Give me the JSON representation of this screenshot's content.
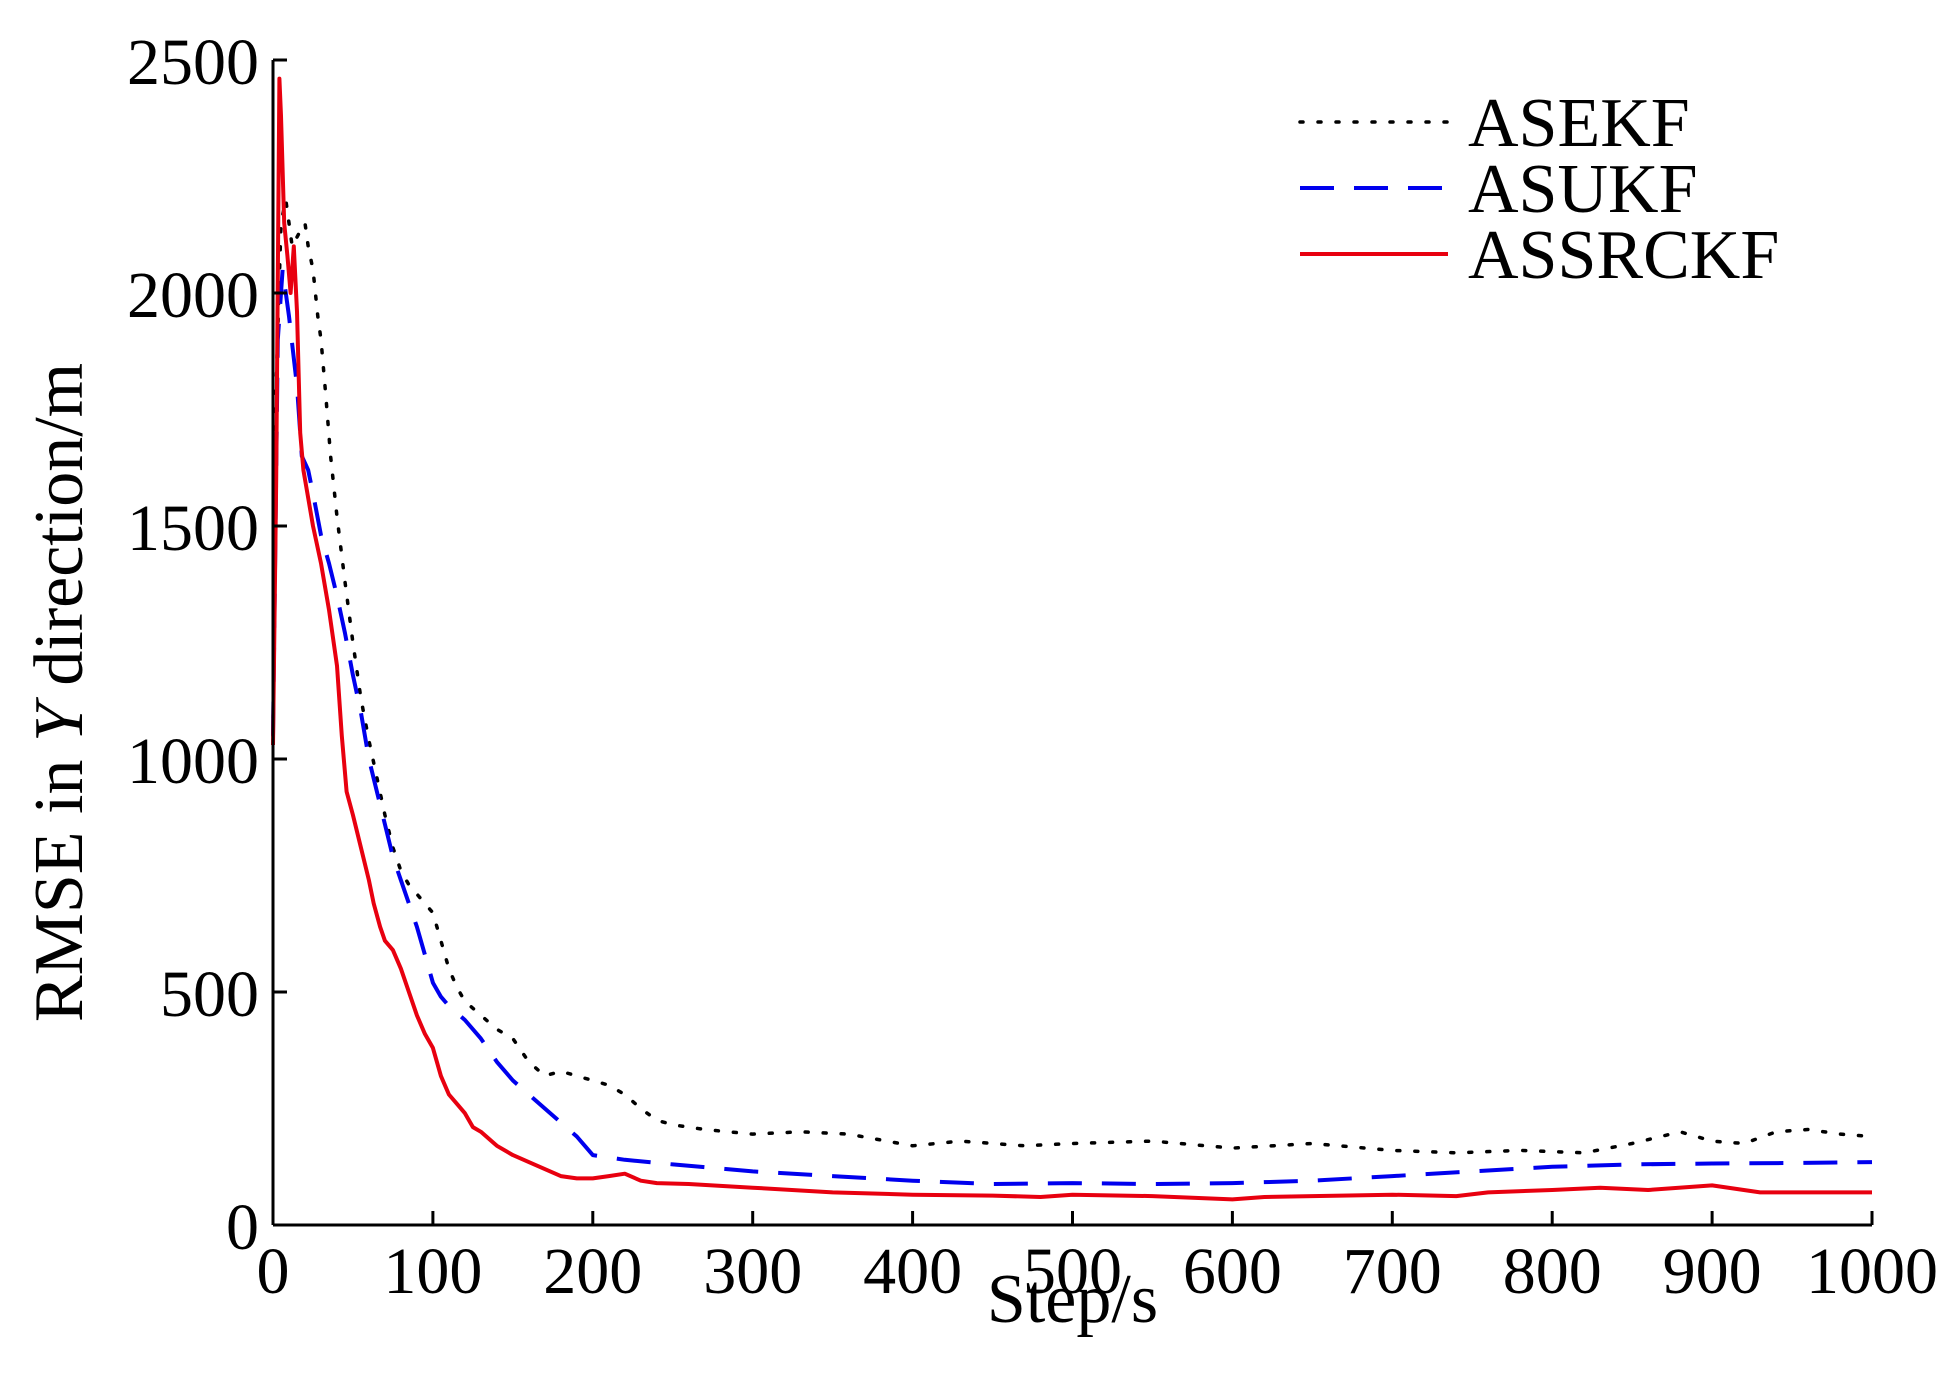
{
  "chart_data": {
    "type": "line",
    "title": "",
    "xlabel": "Step/s",
    "ylabel_parts": [
      "RMSE in ",
      "Y",
      " direction/m"
    ],
    "xlim": [
      0,
      1000
    ],
    "ylim": [
      0,
      2500
    ],
    "xticks": [
      0,
      100,
      200,
      300,
      400,
      500,
      600,
      700,
      800,
      900,
      1000
    ],
    "yticks": [
      0,
      500,
      1000,
      1500,
      2000,
      2500
    ],
    "grid": false,
    "legend_position": "top-right",
    "series": [
      {
        "name": "ASEKF",
        "color": "#000000",
        "style": "dotted",
        "points": [
          [
            0,
            1050
          ],
          [
            2,
            1800
          ],
          [
            5,
            2150
          ],
          [
            8,
            2200
          ],
          [
            12,
            2100
          ],
          [
            15,
            2120
          ],
          [
            18,
            2140
          ],
          [
            20,
            2150
          ],
          [
            22,
            2100
          ],
          [
            25,
            2050
          ],
          [
            28,
            1950
          ],
          [
            30,
            1900
          ],
          [
            33,
            1780
          ],
          [
            36,
            1650
          ],
          [
            40,
            1520
          ],
          [
            45,
            1380
          ],
          [
            50,
            1250
          ],
          [
            55,
            1130
          ],
          [
            60,
            1040
          ],
          [
            65,
            960
          ],
          [
            70,
            880
          ],
          [
            75,
            810
          ],
          [
            80,
            760
          ],
          [
            85,
            730
          ],
          [
            90,
            710
          ],
          [
            95,
            690
          ],
          [
            100,
            670
          ],
          [
            105,
            610
          ],
          [
            110,
            550
          ],
          [
            115,
            510
          ],
          [
            120,
            480
          ],
          [
            130,
            450
          ],
          [
            140,
            420
          ],
          [
            150,
            400
          ],
          [
            160,
            350
          ],
          [
            170,
            320
          ],
          [
            180,
            330
          ],
          [
            190,
            320
          ],
          [
            200,
            310
          ],
          [
            210,
            300
          ],
          [
            220,
            280
          ],
          [
            230,
            250
          ],
          [
            240,
            225
          ],
          [
            250,
            215
          ],
          [
            270,
            205
          ],
          [
            300,
            195
          ],
          [
            330,
            200
          ],
          [
            360,
            195
          ],
          [
            400,
            170
          ],
          [
            430,
            180
          ],
          [
            470,
            170
          ],
          [
            500,
            175
          ],
          [
            550,
            180
          ],
          [
            600,
            165
          ],
          [
            650,
            175
          ],
          [
            700,
            160
          ],
          [
            740,
            155
          ],
          [
            780,
            160
          ],
          [
            820,
            155
          ],
          [
            850,
            175
          ],
          [
            880,
            200
          ],
          [
            900,
            180
          ],
          [
            920,
            175
          ],
          [
            940,
            200
          ],
          [
            960,
            205
          ],
          [
            980,
            195
          ],
          [
            1000,
            190
          ]
        ]
      },
      {
        "name": "ASUKF",
        "color": "#0000ee",
        "style": "dashed",
        "points": [
          [
            0,
            1050
          ],
          [
            3,
            1900
          ],
          [
            6,
            2050
          ],
          [
            10,
            1950
          ],
          [
            15,
            1800
          ],
          [
            18,
            1650
          ],
          [
            22,
            1620
          ],
          [
            25,
            1570
          ],
          [
            30,
            1480
          ],
          [
            35,
            1420
          ],
          [
            40,
            1350
          ],
          [
            45,
            1270
          ],
          [
            50,
            1180
          ],
          [
            55,
            1100
          ],
          [
            60,
            1000
          ],
          [
            65,
            930
          ],
          [
            70,
            860
          ],
          [
            75,
            790
          ],
          [
            80,
            740
          ],
          [
            85,
            690
          ],
          [
            90,
            640
          ],
          [
            95,
            580
          ],
          [
            100,
            520
          ],
          [
            105,
            490
          ],
          [
            110,
            470
          ],
          [
            120,
            440
          ],
          [
            130,
            400
          ],
          [
            140,
            350
          ],
          [
            150,
            310
          ],
          [
            160,
            280
          ],
          [
            170,
            250
          ],
          [
            180,
            220
          ],
          [
            190,
            190
          ],
          [
            200,
            150
          ],
          [
            220,
            140
          ],
          [
            250,
            130
          ],
          [
            300,
            115
          ],
          [
            350,
            105
          ],
          [
            400,
            95
          ],
          [
            450,
            88
          ],
          [
            500,
            90
          ],
          [
            550,
            88
          ],
          [
            600,
            90
          ],
          [
            650,
            95
          ],
          [
            700,
            105
          ],
          [
            750,
            115
          ],
          [
            800,
            125
          ],
          [
            850,
            130
          ],
          [
            900,
            132
          ],
          [
            950,
            133
          ],
          [
            1000,
            135
          ]
        ]
      },
      {
        "name": "ASSRCKF",
        "color": "#e8000f",
        "style": "solid",
        "points": [
          [
            0,
            1030
          ],
          [
            2,
            1600
          ],
          [
            4,
            2460
          ],
          [
            5,
            2380
          ],
          [
            7,
            2150
          ],
          [
            9,
            2080
          ],
          [
            11,
            2000
          ],
          [
            13,
            2100
          ],
          [
            15,
            1960
          ],
          [
            17,
            1700
          ],
          [
            19,
            1620
          ],
          [
            21,
            1580
          ],
          [
            25,
            1500
          ],
          [
            30,
            1420
          ],
          [
            35,
            1320
          ],
          [
            40,
            1200
          ],
          [
            43,
            1050
          ],
          [
            46,
            930
          ],
          [
            50,
            880
          ],
          [
            55,
            810
          ],
          [
            60,
            740
          ],
          [
            63,
            690
          ],
          [
            67,
            640
          ],
          [
            70,
            610
          ],
          [
            75,
            590
          ],
          [
            80,
            550
          ],
          [
            85,
            500
          ],
          [
            90,
            450
          ],
          [
            95,
            410
          ],
          [
            100,
            380
          ],
          [
            105,
            320
          ],
          [
            110,
            280
          ],
          [
            115,
            260
          ],
          [
            120,
            240
          ],
          [
            125,
            210
          ],
          [
            130,
            200
          ],
          [
            140,
            170
          ],
          [
            150,
            150
          ],
          [
            160,
            135
          ],
          [
            170,
            120
          ],
          [
            180,
            105
          ],
          [
            190,
            100
          ],
          [
            200,
            100
          ],
          [
            210,
            105
          ],
          [
            220,
            110
          ],
          [
            230,
            95
          ],
          [
            240,
            90
          ],
          [
            260,
            88
          ],
          [
            300,
            80
          ],
          [
            350,
            70
          ],
          [
            400,
            65
          ],
          [
            450,
            63
          ],
          [
            480,
            60
          ],
          [
            500,
            65
          ],
          [
            550,
            62
          ],
          [
            600,
            55
          ],
          [
            620,
            60
          ],
          [
            650,
            62
          ],
          [
            700,
            65
          ],
          [
            740,
            62
          ],
          [
            760,
            70
          ],
          [
            800,
            75
          ],
          [
            830,
            80
          ],
          [
            860,
            75
          ],
          [
            900,
            85
          ],
          [
            930,
            70
          ],
          [
            960,
            70
          ],
          [
            1000,
            70
          ]
        ]
      }
    ]
  }
}
